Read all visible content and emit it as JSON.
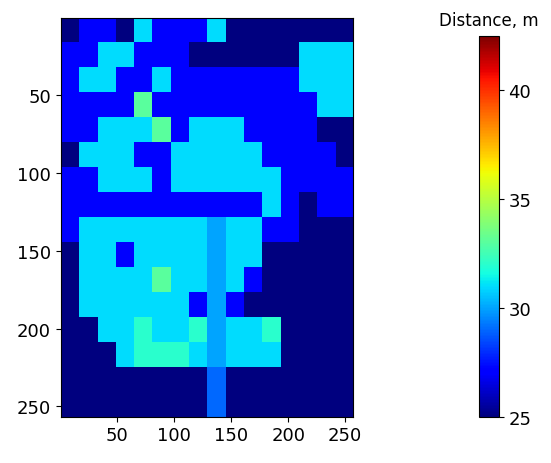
{
  "chart_data": {
    "type": "heatmap",
    "xlim": [
      0.5,
      256.5
    ],
    "ylim": [
      256.5,
      0.5
    ],
    "xticks": [
      50,
      100,
      150,
      200,
      250
    ],
    "yticks": [
      50,
      100,
      150,
      200,
      250
    ],
    "colorbar_label": "Distance, m",
    "colorbar_range": [
      25,
      42.5
    ],
    "colorbar_ticks": [
      25,
      30,
      35,
      40
    ],
    "cells": [
      [
        25,
        27,
        27,
        25,
        31,
        27,
        27,
        27,
        31,
        25,
        25,
        25,
        25,
        25,
        25,
        25
      ],
      [
        27,
        27,
        31,
        31,
        27,
        27,
        27,
        25,
        25,
        25,
        25,
        25,
        25,
        31,
        31,
        31
      ],
      [
        27,
        31,
        31,
        27,
        27,
        31,
        27,
        27,
        27,
        27,
        27,
        27,
        27,
        31,
        31,
        31
      ],
      [
        27,
        27,
        27,
        27,
        33,
        27,
        27,
        27,
        27,
        27,
        27,
        27,
        27,
        27,
        31,
        31
      ],
      [
        27,
        27,
        31,
        31,
        31,
        33,
        27,
        31,
        31,
        31,
        27,
        27,
        27,
        27,
        25,
        25
      ],
      [
        25,
        31,
        31,
        31,
        27,
        27,
        31,
        31,
        31,
        31,
        31,
        27,
        27,
        27,
        27,
        25
      ],
      [
        27,
        27,
        31,
        31,
        31,
        27,
        31,
        31,
        31,
        31,
        31,
        31,
        27,
        27,
        27,
        27
      ],
      [
        27,
        27,
        27,
        27,
        27,
        27,
        27,
        27,
        27,
        27,
        27,
        31,
        27,
        25,
        27,
        27
      ],
      [
        27,
        31,
        31,
        31,
        31,
        31,
        31,
        31,
        30,
        31,
        31,
        27,
        27,
        25,
        25,
        25
      ],
      [
        25,
        31,
        31,
        27,
        31,
        31,
        31,
        31,
        30,
        31,
        31,
        25,
        25,
        25,
        25,
        25
      ],
      [
        25,
        31,
        31,
        31,
        31,
        33,
        31,
        31,
        30,
        31,
        27,
        25,
        25,
        25,
        25,
        25
      ],
      [
        25,
        31,
        31,
        31,
        31,
        31,
        31,
        27,
        30,
        27,
        25,
        25,
        25,
        25,
        25,
        25
      ],
      [
        25,
        25,
        31,
        31,
        32,
        31,
        31,
        32,
        30,
        31,
        31,
        32,
        25,
        25,
        25,
        25
      ],
      [
        25,
        25,
        25,
        31,
        32,
        32,
        32,
        31,
        30,
        31,
        31,
        31,
        25,
        25,
        25,
        25
      ],
      [
        25,
        25,
        25,
        25,
        25,
        25,
        25,
        25,
        29,
        25,
        25,
        25,
        25,
        25,
        25,
        25
      ],
      [
        25,
        25,
        25,
        25,
        25,
        25,
        25,
        25,
        29,
        25,
        25,
        25,
        25,
        25,
        25,
        25
      ]
    ]
  }
}
